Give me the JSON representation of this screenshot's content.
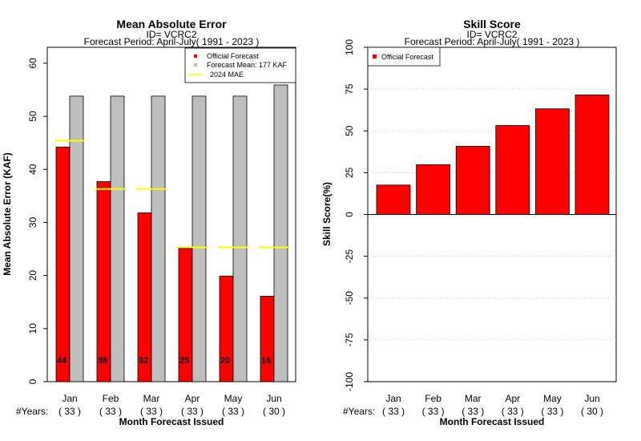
{
  "chart_data": [
    {
      "type": "bar",
      "title": "Mean Absolute Error",
      "subtitle_id": "ID= VCRC2",
      "subtitle_period": "Forecast Period: April-July( 1991 - 2023 )",
      "ylabel": "Mean Absolute Error (KAF)",
      "xlabel": "Month Forecast Issued",
      "years_label": "#Years:",
      "categories": [
        "Jan",
        "Feb",
        "Mar",
        "Apr",
        "May",
        "Jun"
      ],
      "years": [
        "( 33 )",
        "( 33 )",
        "( 33 )",
        "( 33 )",
        "( 33 )",
        "( 30 )"
      ],
      "ylim": [
        0,
        63
      ],
      "yticks": [
        "0",
        "10",
        "20",
        "30",
        "40",
        "50",
        "60"
      ],
      "series": [
        {
          "name": "Official Forecast",
          "values": [
            44.2,
            37.7,
            31.8,
            25.1,
            19.9,
            16.1
          ],
          "labels": [
            "44",
            "38",
            "32",
            "25",
            "20",
            "16"
          ],
          "color": "#ff0000"
        },
        {
          "name": "Forecast Mean: 177 KAF",
          "values": [
            53.8,
            53.8,
            53.8,
            53.8,
            53.8,
            55.9
          ],
          "color": "#bebebe"
        },
        {
          "name": "2024  MAE",
          "values": [
            45.4,
            36.3,
            36.3,
            25.3,
            25.3,
            25.3
          ],
          "color": "#ffff00"
        }
      ],
      "legend_position": "top-right"
    },
    {
      "type": "bar",
      "title": "Skill Score",
      "subtitle_id": "ID= VCRC2",
      "subtitle_period": "Forecast Period: April-July( 1991 - 2023 )",
      "ylabel": "Skill Score(%)",
      "xlabel": "Month Forecast Issued",
      "years_label": "#Years:",
      "categories": [
        "Jan",
        "Feb",
        "Mar",
        "Apr",
        "May",
        "Jun"
      ],
      "years": [
        "( 33 )",
        "( 33 )",
        "( 33 )",
        "( 33 )",
        "( 33 )",
        "( 30 )"
      ],
      "ylim": [
        -100,
        100
      ],
      "yticks": [
        "-100",
        "-75",
        "-50",
        "-25",
        "0",
        "25",
        "50",
        "75",
        "100"
      ],
      "grid": true,
      "series": [
        {
          "name": "Official Forecast",
          "values": [
            17.6,
            29.8,
            40.8,
            53.2,
            63.2,
            71.5
          ],
          "color": "#ff0000"
        }
      ],
      "legend_position": "top-left"
    }
  ]
}
